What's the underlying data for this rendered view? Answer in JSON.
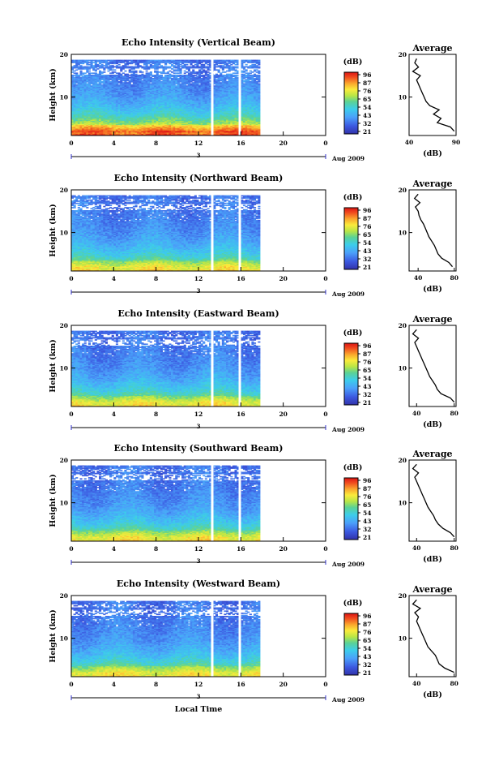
{
  "chart_data": [
    {
      "type": "heatmap",
      "title": "Echo Intensity (Vertical Beam)",
      "ylabel": "Height (km)",
      "y_ticks": [
        "20",
        "10"
      ],
      "x_ticks": [
        "0",
        "4",
        "8",
        "12",
        "16",
        "20",
        "0"
      ],
      "date_marker": "3",
      "date_label": "Aug 2009",
      "xlim": [
        0,
        24
      ],
      "ylim": [
        1,
        20
      ],
      "data_end_hour": 17.8,
      "gap_hours": [
        13.3,
        15.9
      ],
      "colorbar": {
        "unit": "(dB)",
        "ticks": [
          "96",
          "87",
          "76",
          "65",
          "54",
          "43",
          "32",
          "21"
        ],
        "range": [
          21,
          96
        ]
      },
      "profile": {
        "title": "Average",
        "xlabel": "(dB)",
        "x_ticks": [
          "40",
          "90"
        ],
        "xlim": [
          40,
          90
        ],
        "y_ticks": [
          "20",
          "10"
        ],
        "heights": [
          2,
          3,
          4,
          5,
          6,
          7,
          8,
          9,
          10,
          11,
          12,
          13,
          14,
          15,
          16,
          17,
          18,
          19
        ],
        "values": [
          88,
          84,
          70,
          74,
          66,
          72,
          62,
          58,
          56,
          54,
          52,
          50,
          48,
          52,
          44,
          50,
          46,
          48
        ]
      }
    },
    {
      "type": "heatmap",
      "title": "Echo Intensity (Northward Beam)",
      "ylabel": "Height (km)",
      "y_ticks": [
        "20",
        "10"
      ],
      "x_ticks": [
        "0",
        "4",
        "8",
        "12",
        "16",
        "20",
        "0"
      ],
      "date_marker": "3",
      "date_label": "Aug 2009",
      "xlim": [
        0,
        24
      ],
      "ylim": [
        1,
        20
      ],
      "data_end_hour": 17.8,
      "gap_hours": [
        13.3,
        15.9
      ],
      "colorbar": {
        "unit": "(dB)",
        "ticks": [
          "96",
          "87",
          "76",
          "65",
          "54",
          "43",
          "32",
          "21"
        ],
        "range": [
          21,
          96
        ]
      },
      "profile": {
        "title": "Average",
        "xlabel": "(dB)",
        "x_ticks": [
          "40",
          "80"
        ],
        "xlim": [
          30,
          82
        ],
        "y_ticks": [
          "20",
          "10"
        ],
        "heights": [
          2,
          3,
          4,
          5,
          6,
          7,
          8,
          9,
          10,
          11,
          12,
          13,
          14,
          15,
          16,
          17,
          18,
          19
        ],
        "values": [
          78,
          74,
          66,
          62,
          60,
          58,
          55,
          52,
          50,
          48,
          46,
          43,
          41,
          40,
          37,
          42,
          36,
          40
        ]
      }
    },
    {
      "type": "heatmap",
      "title": "Echo Intensity (Eastward Beam)",
      "ylabel": "Height (km)",
      "y_ticks": [
        "20",
        "10"
      ],
      "x_ticks": [
        "0",
        "4",
        "8",
        "12",
        "16",
        "20",
        "0"
      ],
      "date_marker": "3",
      "date_label": "Aug 2009",
      "xlim": [
        0,
        24
      ],
      "ylim": [
        1,
        20
      ],
      "data_end_hour": 17.8,
      "gap_hours": [
        13.3,
        15.9
      ],
      "colorbar": {
        "unit": "(dB)",
        "ticks": [
          "96",
          "87",
          "76",
          "65",
          "54",
          "43",
          "32",
          "21"
        ],
        "range": [
          21,
          96
        ]
      },
      "profile": {
        "title": "Average",
        "xlabel": "(dB)",
        "x_ticks": [
          "40",
          "80"
        ],
        "xlim": [
          32,
          82
        ],
        "y_ticks": [
          "20",
          "10"
        ],
        "heights": [
          2,
          3,
          4,
          5,
          6,
          7,
          8,
          9,
          10,
          11,
          12,
          13,
          14,
          15,
          16,
          17,
          18,
          19
        ],
        "values": [
          80,
          76,
          66,
          62,
          60,
          57,
          54,
          52,
          50,
          48,
          46,
          44,
          42,
          40,
          38,
          42,
          36,
          40
        ]
      }
    },
    {
      "type": "heatmap",
      "title": "Echo Intensity (Southward Beam)",
      "ylabel": "Height (km)",
      "y_ticks": [
        "20",
        "10"
      ],
      "x_ticks": [
        "0",
        "4",
        "8",
        "12",
        "16",
        "20",
        "0"
      ],
      "date_marker": "3",
      "date_label": "Aug 2009",
      "xlim": [
        0,
        24
      ],
      "ylim": [
        1,
        20
      ],
      "data_end_hour": 17.8,
      "gap_hours": [
        13.3,
        15.9
      ],
      "colorbar": {
        "unit": "(dB)",
        "ticks": [
          "96",
          "87",
          "76",
          "65",
          "54",
          "43",
          "32",
          "21"
        ],
        "range": [
          21,
          96
        ]
      },
      "profile": {
        "title": "Average",
        "xlabel": "(dB)",
        "x_ticks": [
          "40",
          "80"
        ],
        "xlim": [
          32,
          82
        ],
        "y_ticks": [
          "20",
          "10"
        ],
        "heights": [
          2,
          3,
          4,
          5,
          6,
          7,
          8,
          9,
          10,
          11,
          12,
          13,
          14,
          15,
          16,
          17,
          18,
          19
        ],
        "values": [
          80,
          76,
          68,
          63,
          60,
          58,
          55,
          52,
          50,
          48,
          46,
          44,
          42,
          40,
          38,
          42,
          36,
          40
        ]
      }
    },
    {
      "type": "heatmap",
      "title": "Echo Intensity (Westward Beam)",
      "ylabel": "Height (km)",
      "y_ticks": [
        "20",
        "10"
      ],
      "x_ticks": [
        "0",
        "4",
        "8",
        "12",
        "16",
        "20",
        "0"
      ],
      "date_marker": "3",
      "date_label": "Aug 2009",
      "xlabel": "Local Time",
      "xlim": [
        0,
        24
      ],
      "ylim": [
        1,
        20
      ],
      "data_end_hour": 17.8,
      "gap_hours": [
        13.3,
        15.9
      ],
      "colorbar": {
        "unit": "(dB)",
        "ticks": [
          "96",
          "87",
          "76",
          "65",
          "54",
          "43",
          "32",
          "21"
        ],
        "range": [
          21,
          96
        ]
      },
      "profile": {
        "title": "Average",
        "xlabel": "(dB)",
        "x_ticks": [
          "40",
          "80"
        ],
        "xlim": [
          32,
          82
        ],
        "y_ticks": [
          "20",
          "10"
        ],
        "heights": [
          2,
          3,
          4,
          5,
          6,
          7,
          8,
          9,
          10,
          11,
          12,
          13,
          14,
          15,
          16,
          17,
          18,
          19
        ],
        "values": [
          80,
          70,
          64,
          62,
          60,
          56,
          52,
          50,
          48,
          46,
          44,
          42,
          40,
          42,
          38,
          44,
          36,
          40
        ]
      }
    }
  ]
}
